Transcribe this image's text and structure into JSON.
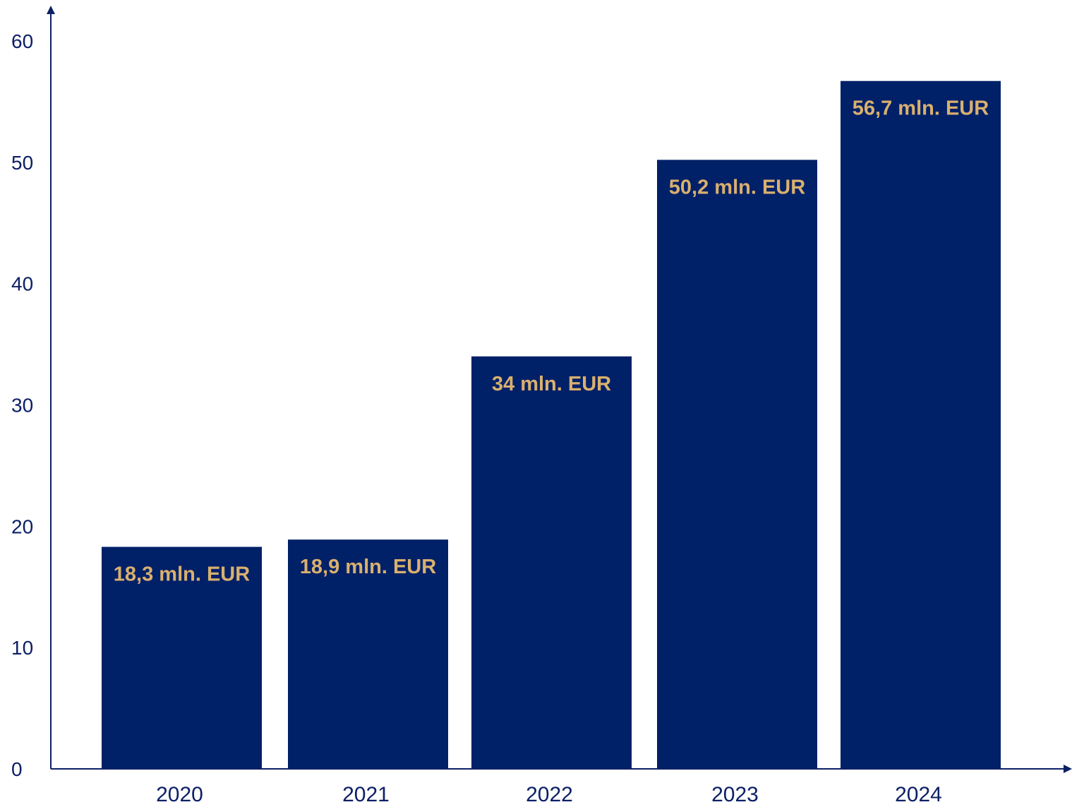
{
  "chart_data": {
    "type": "bar",
    "title": "",
    "xlabel": "",
    "ylabel": "",
    "categories": [
      "2020",
      "2021",
      "2022",
      "2023",
      "2024"
    ],
    "values": [
      18.3,
      18.9,
      34,
      50.2,
      56.7
    ],
    "data_labels": [
      "18,3 mln. EUR",
      "18,9 mln. EUR",
      "34 mln. EUR",
      "50,2 mln. EUR",
      "56,7 mln. EUR"
    ],
    "ylim": [
      0,
      60
    ],
    "yticks": [
      "0",
      "10",
      "20",
      "30",
      "40",
      "50",
      "60"
    ],
    "grid": false,
    "legend": "none",
    "colors": {
      "bar": "#002068",
      "data_label": "#d9b06e",
      "axis": "#0d2066",
      "text": "#0d2066"
    }
  }
}
